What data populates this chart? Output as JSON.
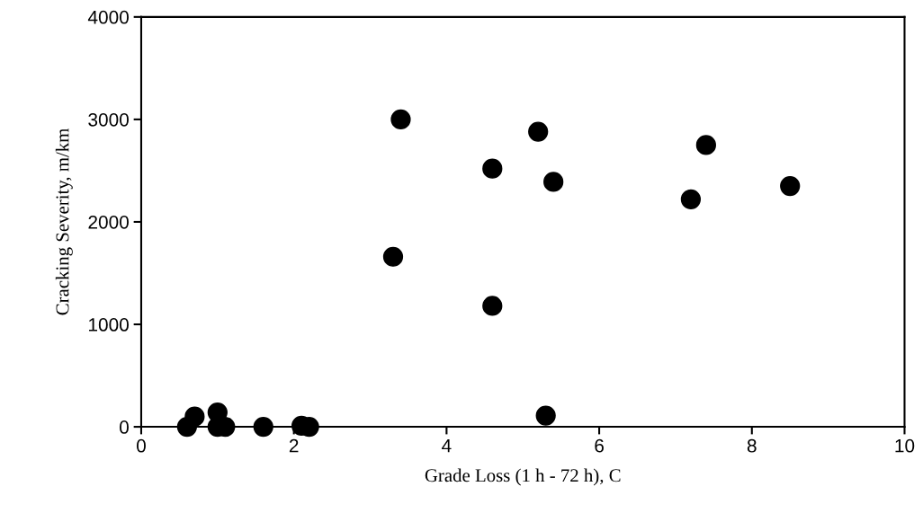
{
  "chart_data": {
    "type": "scatter",
    "xlabel": "Grade Loss (1 h - 72 h), C",
    "ylabel": "Cracking Severity, m/km",
    "x": [
      0.6,
      0.7,
      1.0,
      1.0,
      1.1,
      1.6,
      2.1,
      2.2,
      3.4,
      5.2,
      4.6,
      5.4,
      3.3,
      4.6,
      5.3,
      7.4,
      7.2,
      8.5
    ],
    "series": [
      {
        "color": "#000000",
        "values": [
          0,
          100,
          140,
          0,
          0,
          0,
          10,
          0,
          3000,
          2880,
          2520,
          2390,
          1660,
          1180,
          110,
          2750,
          2220,
          2350
        ]
      }
    ],
    "xlim": [
      0,
      10
    ],
    "xticks": [
      0,
      2,
      4,
      6,
      8,
      10
    ],
    "ylim": [
      0,
      4000
    ],
    "yticks": [
      0,
      1000,
      2000,
      3000,
      4000
    ],
    "marker": "circle",
    "grid": false,
    "legend": false
  }
}
